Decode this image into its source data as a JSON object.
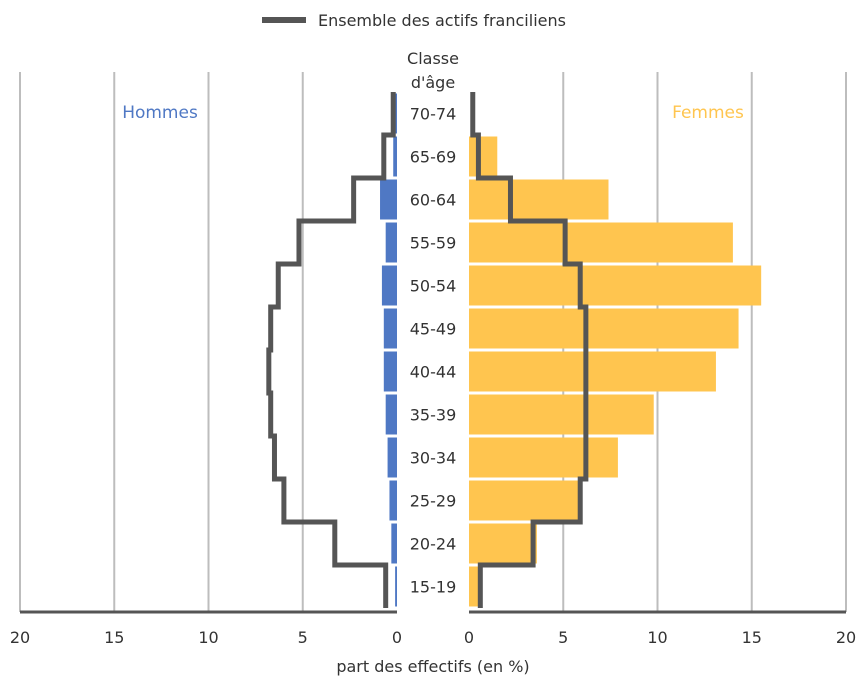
{
  "chart_data": {
    "type": "bar",
    "subtype": "population-pyramid",
    "legend": {
      "label": "Ensemble des actifs franciliens",
      "placement": "top-center"
    },
    "age_header": [
      "Classe",
      "d'âge"
    ],
    "categories": [
      "70-74",
      "65-69",
      "60-64",
      "55-59",
      "50-54",
      "45-49",
      "40-44",
      "35-39",
      "30-34",
      "25-29",
      "20-24",
      "15-19"
    ],
    "men": {
      "name": "Hommes",
      "color": "#4f78c4",
      "values": [
        0.1,
        0.2,
        0.9,
        0.6,
        0.8,
        0.7,
        0.7,
        0.6,
        0.5,
        0.4,
        0.3,
        0.1
      ]
    },
    "women": {
      "name": "Femmes",
      "color": "#ffc54f",
      "values": [
        0.0,
        1.5,
        7.4,
        14.0,
        15.5,
        14.3,
        13.1,
        9.8,
        7.9,
        5.9,
        3.6,
        0.5
      ]
    },
    "reference": {
      "name": "Ensemble des actifs franciliens",
      "color": "#555555",
      "men_values": [
        0.2,
        0.7,
        2.3,
        5.2,
        6.3,
        6.7,
        6.8,
        6.7,
        6.5,
        6.0,
        3.3,
        0.6
      ],
      "women_values": [
        0.2,
        0.5,
        2.2,
        5.1,
        5.9,
        6.2,
        6.2,
        6.2,
        6.2,
        5.9,
        3.4,
        0.6
      ]
    },
    "x_ticks_left": [
      20,
      15,
      10,
      5,
      0
    ],
    "x_ticks_right": [
      0,
      5,
      10,
      15,
      20
    ],
    "xlim": [
      0,
      20
    ],
    "xlabel": "part des effectifs (en %)",
    "grid": true
  }
}
